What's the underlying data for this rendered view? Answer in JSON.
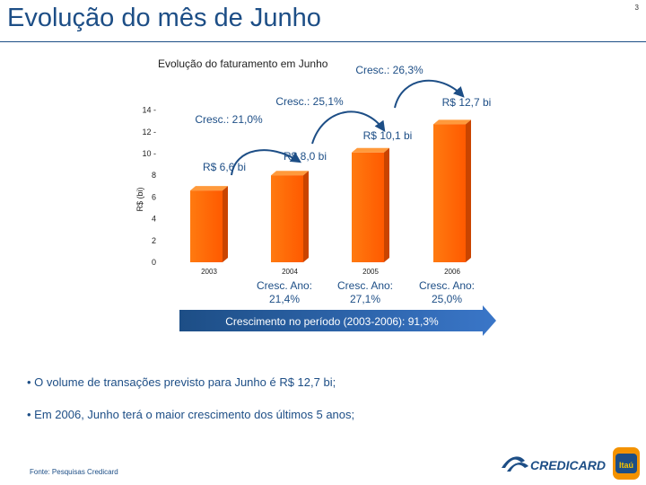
{
  "page": {
    "title": "Evolução do mês de Junho",
    "page_number": "3",
    "source": "Fonte: Pesquisas Credicard"
  },
  "chart_data": {
    "type": "bar",
    "title": "Evolução do faturamento em Junho",
    "ylabel": "R$ (bi)",
    "categories": [
      "2003",
      "2004",
      "2005",
      "2006"
    ],
    "values": [
      6.6,
      8.0,
      10.1,
      12.7
    ],
    "value_labels": [
      "R$ 6,6 bi",
      "R$ 8,0 bi",
      "R$ 10,1 bi",
      "R$ 12,7 bi"
    ],
    "yticks": [
      0,
      2,
      4,
      6,
      8,
      10,
      12,
      14
    ],
    "ytick_labels": [
      "0",
      "2",
      "4",
      "6",
      "8",
      "10 -",
      "12 -",
      "14 -"
    ],
    "ylim": [
      0,
      14
    ],
    "growth_arrows": [
      {
        "from": "2003",
        "to": "2004",
        "label": "Cresc.: 21,0%"
      },
      {
        "from": "2004",
        "to": "2005",
        "label": "Cresc.: 25,1%"
      },
      {
        "from": "2005",
        "to": "2006",
        "label": "Cresc.: 26,3%"
      }
    ],
    "annual_growth": [
      {
        "category": "2004",
        "label": "Cresc. Ano:",
        "value": "21,4%"
      },
      {
        "category": "2005",
        "label": "Cresc. Ano:",
        "value": "27,1%"
      },
      {
        "category": "2006",
        "label": "Cresc. Ano:",
        "value": "25,0%"
      }
    ],
    "period_growth": "Crescimento no período (2003-2006): 91,3%",
    "colors": {
      "bar": "#ff6a00",
      "bar_dark": "#c94400",
      "arrow": "#1d4e86",
      "text": "#1d4e86"
    }
  },
  "bullets": [
    "• O volume de transações previsto para Junho é R$ 12,7 bi;",
    "• Em 2006, Junho terá o maior crescimento dos últimos 5 anos;"
  ],
  "logo": {
    "text": "CREDICARD",
    "badge": "Itaú",
    "colors": {
      "blue": "#1d4e86",
      "orange": "#f39200"
    }
  }
}
